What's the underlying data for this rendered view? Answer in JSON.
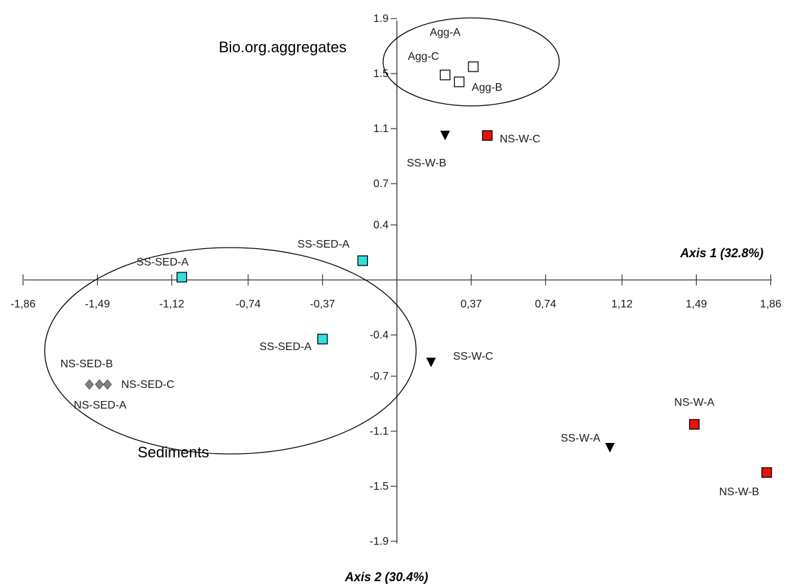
{
  "chart_data": {
    "type": "scatter",
    "x_axis_title": "Axis 1 (32.8%)",
    "y_axis_title": "Axis 2 (30.4%)",
    "x_ticks": [
      "-1,86",
      "-1,49",
      "-1,12",
      "-0,74",
      "-0,37",
      "0,37",
      "0,74",
      "1,12",
      "1,49",
      "1,86"
    ],
    "y_ticks": [
      "1.9",
      "1.5",
      "1.1",
      "0.7",
      "0.4",
      "-0.4",
      "-0.7",
      "-1.1",
      "-1.5",
      "-1.9"
    ],
    "xlim": [
      -1.86,
      1.86
    ],
    "ylim": [
      -1.9,
      1.9
    ],
    "grid": false,
    "groups": [
      {
        "label": "Bio.org.aggregates"
      },
      {
        "label": "Sediments"
      }
    ],
    "points": [
      {
        "label": "Agg-A",
        "x": 0.24,
        "y": 1.49,
        "marker": "square",
        "color": "#ffffff"
      },
      {
        "label": "Agg-B",
        "x": 0.38,
        "y": 1.55,
        "marker": "square",
        "color": "#ffffff"
      },
      {
        "label": "Agg-C",
        "x": 0.31,
        "y": 1.44,
        "marker": "square",
        "color": "#ffffff"
      },
      {
        "label": "NS-W-C",
        "x": 0.45,
        "y": 1.05,
        "marker": "square",
        "color": "#e8120c"
      },
      {
        "label": "SS-W-B",
        "x": 0.24,
        "y": 1.05,
        "marker": "triangle",
        "color": "#000000"
      },
      {
        "label": "SS-SED-A",
        "x": -1.07,
        "y": 0.02,
        "marker": "square",
        "color": "#2fe0e0"
      },
      {
        "label": "SS-SED-A",
        "x": -0.17,
        "y": 0.14,
        "marker": "square",
        "color": "#2fe0e0"
      },
      {
        "label": "SS-SED-A",
        "x": -0.37,
        "y": -0.43,
        "marker": "square",
        "color": "#2fe0e0"
      },
      {
        "label": "SS-W-C",
        "x": 0.17,
        "y": -0.6,
        "marker": "triangle",
        "color": "#000000"
      },
      {
        "label": "NS-SED-B",
        "x": -1.53,
        "y": -0.76,
        "marker": "diamond",
        "color": "#808080"
      },
      {
        "label": "NS-SED-C",
        "x": -1.44,
        "y": -0.76,
        "marker": "diamond",
        "color": "#808080"
      },
      {
        "label": "NS-SED-A",
        "x": -1.48,
        "y": -0.76,
        "marker": "diamond",
        "color": "#808080"
      },
      {
        "label": "NS-W-A",
        "x": 1.48,
        "y": -1.05,
        "marker": "square",
        "color": "#e8120c"
      },
      {
        "label": "SS-W-A",
        "x": 1.06,
        "y": -1.22,
        "marker": "triangle",
        "color": "#000000"
      },
      {
        "label": "NS-W-B",
        "x": 1.84,
        "y": -1.4,
        "marker": "square",
        "color": "#e8120c"
      }
    ]
  }
}
